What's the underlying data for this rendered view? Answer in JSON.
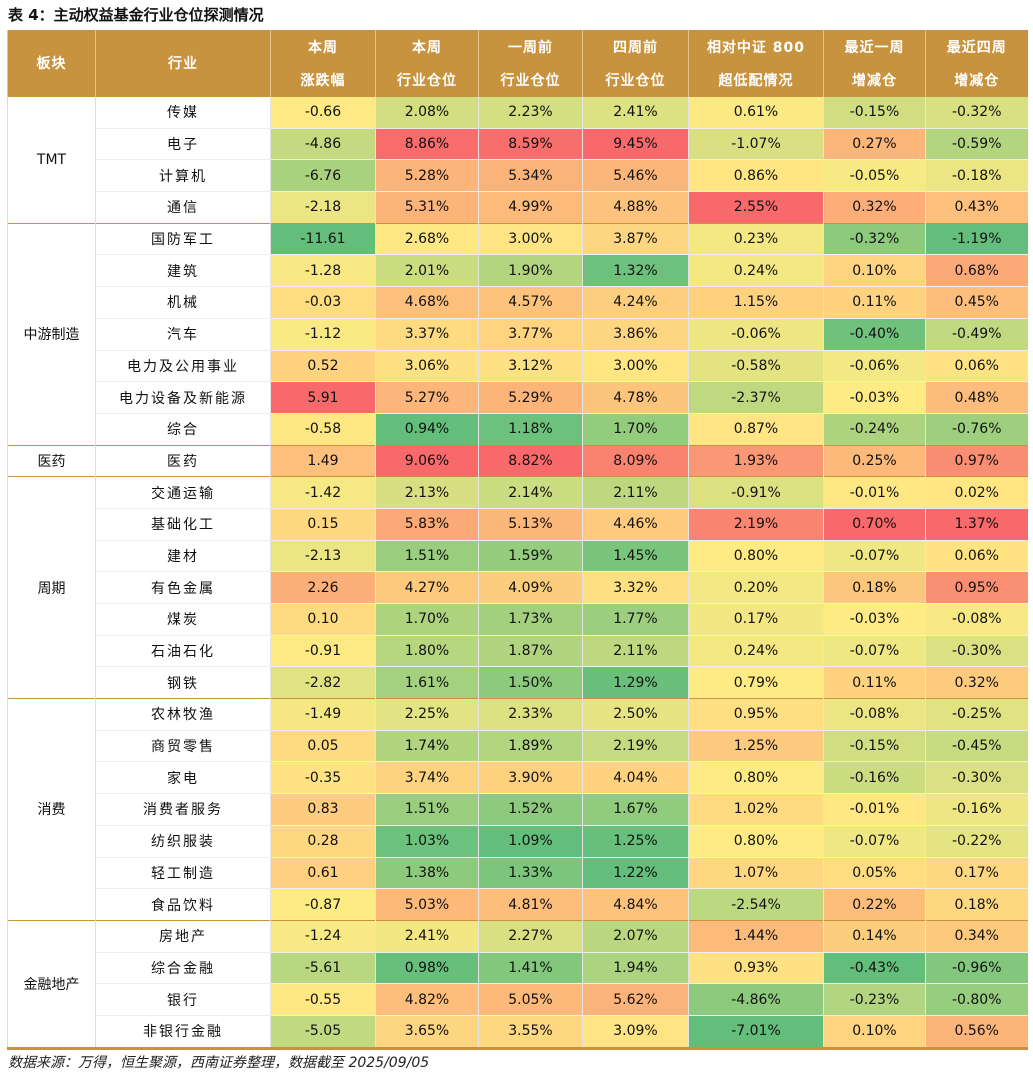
{
  "title": "表 4：主动权益基金行业仓位探测情况",
  "source": "数据来源：万得，恒生聚源，西南证券整理，数据截至 2025/09/05",
  "headers": [
    [
      "板块",
      ""
    ],
    [
      "行业",
      ""
    ],
    [
      "本周",
      "涨跌幅"
    ],
    [
      "本周",
      "行业仓位"
    ],
    [
      "一周前",
      "行业仓位"
    ],
    [
      "四周前",
      "行业仓位"
    ],
    [
      "相对中证 800",
      "超低配情况"
    ],
    [
      "最近一周",
      "增减仓"
    ],
    [
      "最近四周",
      "增减仓"
    ]
  ],
  "colors": {
    "header": "#C8933F",
    "high": "#F8696B",
    "mid": "#FFEB84",
    "low": "#63BE7B"
  },
  "groups": [
    {
      "name": "TMT",
      "rows": [
        [
          "传媒",
          "-0.66",
          "2.08%",
          "2.23%",
          "2.41%",
          "0.61%",
          "-0.15%",
          "-0.32%"
        ],
        [
          "电子",
          "-4.86",
          "8.86%",
          "8.59%",
          "9.45%",
          "-1.07%",
          "0.27%",
          "-0.59%"
        ],
        [
          "计算机",
          "-6.76",
          "5.28%",
          "5.34%",
          "5.46%",
          "0.86%",
          "-0.05%",
          "-0.18%"
        ],
        [
          "通信",
          "-2.18",
          "5.31%",
          "4.99%",
          "4.88%",
          "2.55%",
          "0.32%",
          "0.43%"
        ]
      ]
    },
    {
      "name": "中游制造",
      "rows": [
        [
          "国防军工",
          "-11.61",
          "2.68%",
          "3.00%",
          "3.87%",
          "0.23%",
          "-0.32%",
          "-1.19%"
        ],
        [
          "建筑",
          "-1.28",
          "2.01%",
          "1.90%",
          "1.32%",
          "0.24%",
          "0.10%",
          "0.68%"
        ],
        [
          "机械",
          "-0.03",
          "4.68%",
          "4.57%",
          "4.24%",
          "1.15%",
          "0.11%",
          "0.45%"
        ],
        [
          "汽车",
          "-1.12",
          "3.37%",
          "3.77%",
          "3.86%",
          "-0.06%",
          "-0.40%",
          "-0.49%"
        ],
        [
          "电力及公用事业",
          "0.52",
          "3.06%",
          "3.12%",
          "3.00%",
          "-0.58%",
          "-0.06%",
          "0.06%"
        ],
        [
          "电力设备及新能源",
          "5.91",
          "5.27%",
          "5.29%",
          "4.78%",
          "-2.37%",
          "-0.03%",
          "0.48%"
        ],
        [
          "综合",
          "-0.58",
          "0.94%",
          "1.18%",
          "1.70%",
          "0.87%",
          "-0.24%",
          "-0.76%"
        ]
      ]
    },
    {
      "name": "医药",
      "rows": [
        [
          "医药",
          "1.49",
          "9.06%",
          "8.82%",
          "8.09%",
          "1.93%",
          "0.25%",
          "0.97%"
        ]
      ]
    },
    {
      "name": "周期",
      "rows": [
        [
          "交通运输",
          "-1.42",
          "2.13%",
          "2.14%",
          "2.11%",
          "-0.91%",
          "-0.01%",
          "0.02%"
        ],
        [
          "基础化工",
          "0.15",
          "5.83%",
          "5.13%",
          "4.46%",
          "2.19%",
          "0.70%",
          "1.37%"
        ],
        [
          "建材",
          "-2.13",
          "1.51%",
          "1.59%",
          "1.45%",
          "0.80%",
          "-0.07%",
          "0.06%"
        ],
        [
          "有色金属",
          "2.26",
          "4.27%",
          "4.09%",
          "3.32%",
          "0.20%",
          "0.18%",
          "0.95%"
        ],
        [
          "煤炭",
          "0.10",
          "1.70%",
          "1.73%",
          "1.77%",
          "0.17%",
          "-0.03%",
          "-0.08%"
        ],
        [
          "石油石化",
          "-0.91",
          "1.80%",
          "1.87%",
          "2.11%",
          "0.24%",
          "-0.07%",
          "-0.30%"
        ],
        [
          "钢铁",
          "-2.82",
          "1.61%",
          "1.50%",
          "1.29%",
          "0.79%",
          "0.11%",
          "0.32%"
        ]
      ]
    },
    {
      "name": "消费",
      "rows": [
        [
          "农林牧渔",
          "-1.49",
          "2.25%",
          "2.33%",
          "2.50%",
          "0.95%",
          "-0.08%",
          "-0.25%"
        ],
        [
          "商贸零售",
          "0.05",
          "1.74%",
          "1.89%",
          "2.19%",
          "1.25%",
          "-0.15%",
          "-0.45%"
        ],
        [
          "家电",
          "-0.35",
          "3.74%",
          "3.90%",
          "4.04%",
          "0.80%",
          "-0.16%",
          "-0.30%"
        ],
        [
          "消费者服务",
          "0.83",
          "1.51%",
          "1.52%",
          "1.67%",
          "1.02%",
          "-0.01%",
          "-0.16%"
        ],
        [
          "纺织服装",
          "0.28",
          "1.03%",
          "1.09%",
          "1.25%",
          "0.80%",
          "-0.07%",
          "-0.22%"
        ],
        [
          "轻工制造",
          "0.61",
          "1.38%",
          "1.33%",
          "1.22%",
          "1.07%",
          "0.05%",
          "0.17%"
        ],
        [
          "食品饮料",
          "-0.87",
          "5.03%",
          "4.81%",
          "4.84%",
          "-2.54%",
          "0.22%",
          "0.18%"
        ]
      ]
    },
    {
      "name": "金融地产",
      "rows": [
        [
          "房地产",
          "-1.24",
          "2.41%",
          "2.27%",
          "2.07%",
          "1.44%",
          "0.14%",
          "0.34%"
        ],
        [
          "综合金融",
          "-5.61",
          "0.98%",
          "1.41%",
          "1.94%",
          "0.93%",
          "-0.43%",
          "-0.96%"
        ],
        [
          "银行",
          "-0.55",
          "4.82%",
          "5.05%",
          "5.62%",
          "-4.86%",
          "-0.23%",
          "-0.80%"
        ],
        [
          "非银行金融",
          "-5.05",
          "3.65%",
          "3.55%",
          "3.09%",
          "-7.01%",
          "0.10%",
          "0.56%"
        ]
      ]
    }
  ]
}
